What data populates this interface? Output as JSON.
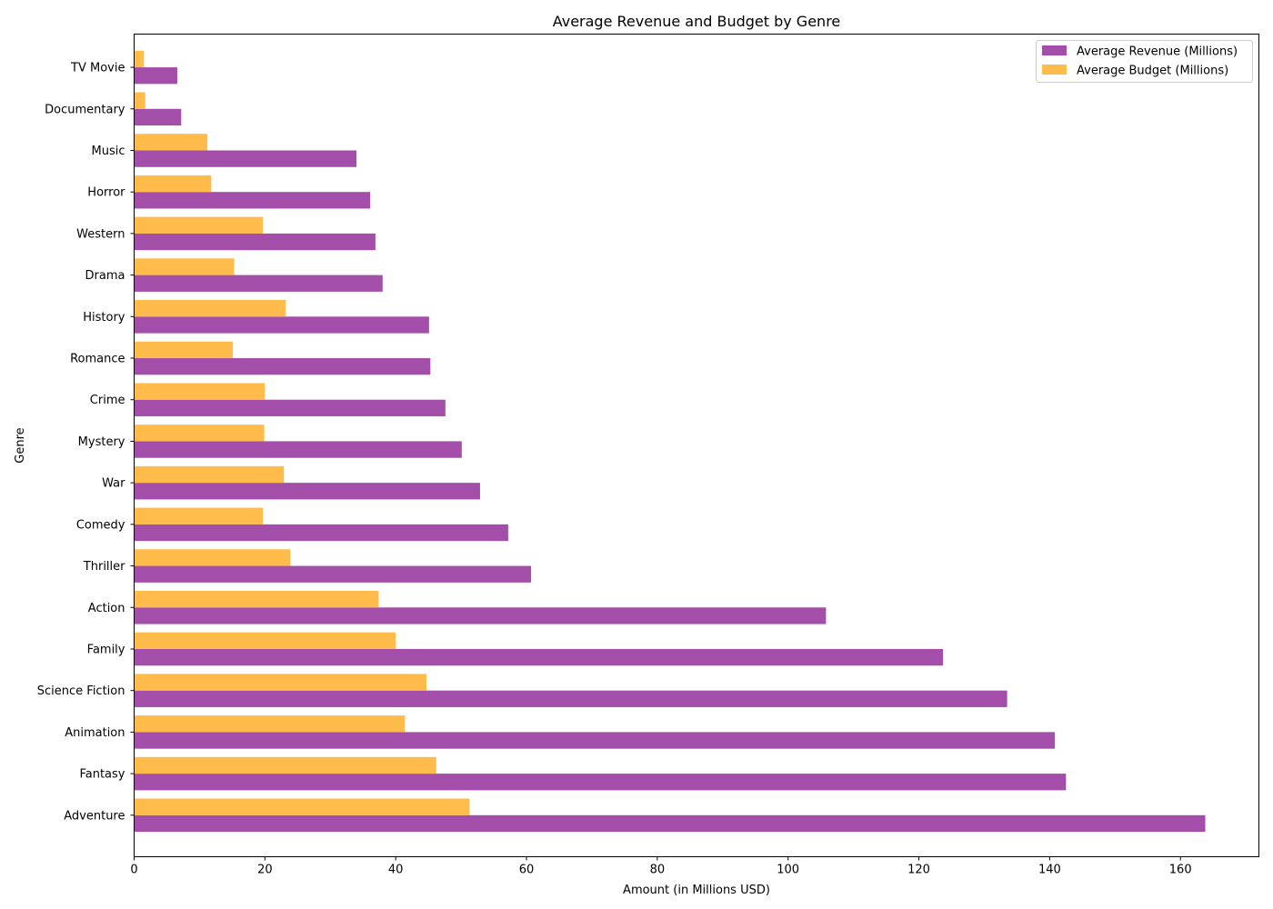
{
  "chart_data": {
    "type": "bar",
    "orientation": "horizontal",
    "title": "Average Revenue and Budget by Genre",
    "xlabel": "Amount (in Millions USD)",
    "ylabel": "Genre",
    "xlim": [
      0,
      172
    ],
    "xticks": [
      0,
      20,
      40,
      60,
      80,
      100,
      120,
      140,
      160
    ],
    "grid": false,
    "legend_position": "top-right",
    "categories": [
      "Adventure",
      "Fantasy",
      "Animation",
      "Science Fiction",
      "Family",
      "Action",
      "Thriller",
      "Comedy",
      "War",
      "Mystery",
      "Crime",
      "Romance",
      "History",
      "Drama",
      "Western",
      "Horror",
      "Music",
      "Documentary",
      "TV Movie"
    ],
    "series": [
      {
        "name": "Average Revenue (Millions)",
        "color": "#a34ea8",
        "values": [
          163.8,
          142.5,
          140.8,
          133.5,
          123.7,
          105.8,
          60.7,
          57.2,
          52.9,
          50.1,
          47.6,
          45.3,
          45.1,
          38.0,
          36.9,
          36.1,
          34.0,
          7.2,
          6.6
        ]
      },
      {
        "name": "Average Budget (Millions)",
        "color": "#ffbc4a",
        "values": [
          51.3,
          46.2,
          41.4,
          44.7,
          40.0,
          37.4,
          23.9,
          19.7,
          22.9,
          19.9,
          20.0,
          15.1,
          23.2,
          15.3,
          19.7,
          11.8,
          11.2,
          1.7,
          1.5
        ]
      }
    ]
  }
}
